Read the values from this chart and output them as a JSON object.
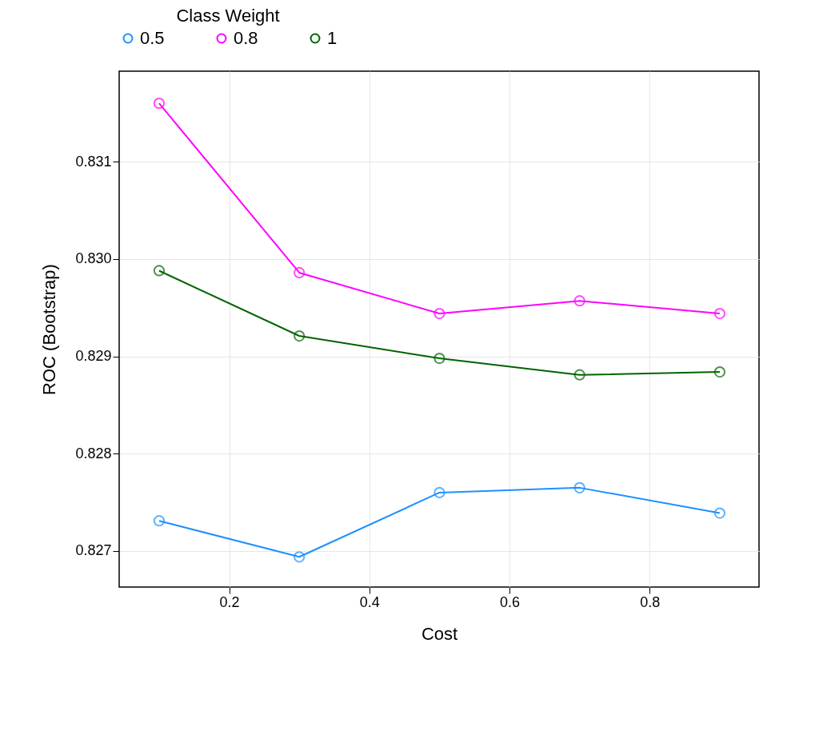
{
  "chart_data": {
    "type": "line",
    "xlabel": "Cost",
    "ylabel": "ROC (Bootstrap)",
    "legend_title": "Class Weight",
    "x": [
      0.1,
      0.3,
      0.5,
      0.7,
      0.9
    ],
    "series": [
      {
        "name": "0.5",
        "color": "#1e90ff",
        "values": [
          0.82731,
          0.82694,
          0.8276,
          0.82765,
          0.82739
        ]
      },
      {
        "name": "0.8",
        "color": "#ff00ff",
        "values": [
          0.8316,
          0.82986,
          0.82944,
          0.82957,
          0.82944
        ]
      },
      {
        "name": "1",
        "color": "#006400",
        "values": [
          0.82988,
          0.82921,
          0.82898,
          0.82881,
          0.82884
        ]
      }
    ],
    "xlim": [
      0.043,
      0.956
    ],
    "xticks": [
      0.2,
      0.4,
      0.6,
      0.8
    ],
    "ylim": [
      0.82663,
      0.83193
    ],
    "yticks": [
      0.827,
      0.828,
      0.829,
      {
        "value": 0.83,
        "label": "0.830"
      },
      0.831
    ],
    "grid": true,
    "legend": "top",
    "marker": "circle",
    "line_style": "solid"
  }
}
